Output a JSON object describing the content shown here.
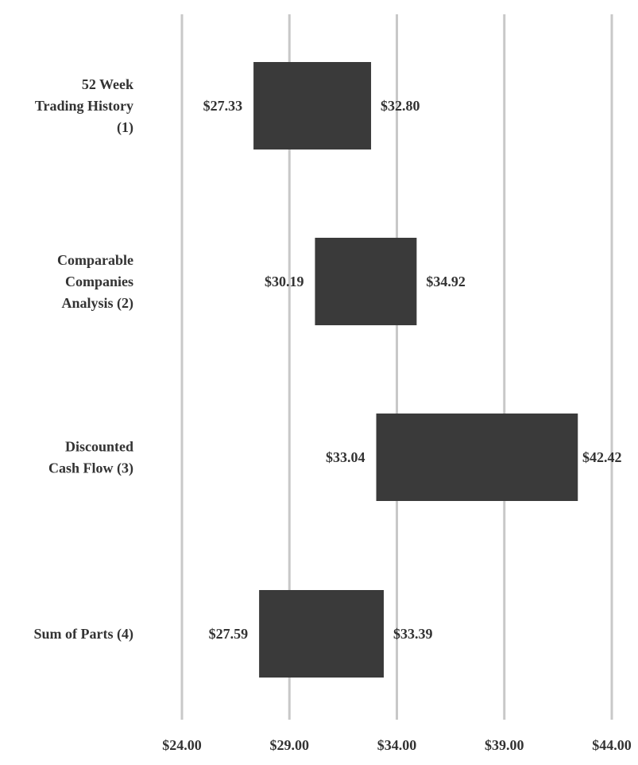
{
  "chart_data": {
    "type": "bar",
    "orientation": "horizontal",
    "variant": "floating-range",
    "title": "",
    "xlabel": "",
    "ylabel": "",
    "xlim": [
      24,
      44
    ],
    "x_ticks": [
      24,
      29,
      34,
      39,
      44
    ],
    "x_tick_labels": [
      "$24.00",
      "$29.00",
      "$34.00",
      "$39.00",
      "$44.00"
    ],
    "grid": "vertical",
    "legend": "none",
    "categories": [
      [
        "52 Week",
        "Trading History",
        "(1)"
      ],
      [
        "Comparable",
        "Companies",
        "Analysis (2)"
      ],
      [
        "Discounted",
        "Cash Flow (3)"
      ],
      [
        "Sum of Parts (4)"
      ]
    ],
    "series": [
      {
        "low": [
          27.33,
          30.19,
          33.04,
          27.59
        ],
        "high": [
          32.8,
          34.92,
          42.42,
          33.39
        ],
        "low_labels": [
          "$27.33",
          "$30.19",
          "$33.04",
          "$27.59"
        ],
        "high_labels": [
          "$32.80",
          "$34.92",
          "$42.42",
          "$33.39"
        ]
      }
    ],
    "colors": {
      "bar": "#3a3a3a",
      "grid": "#c8c8c8",
      "text": "#333333"
    }
  }
}
